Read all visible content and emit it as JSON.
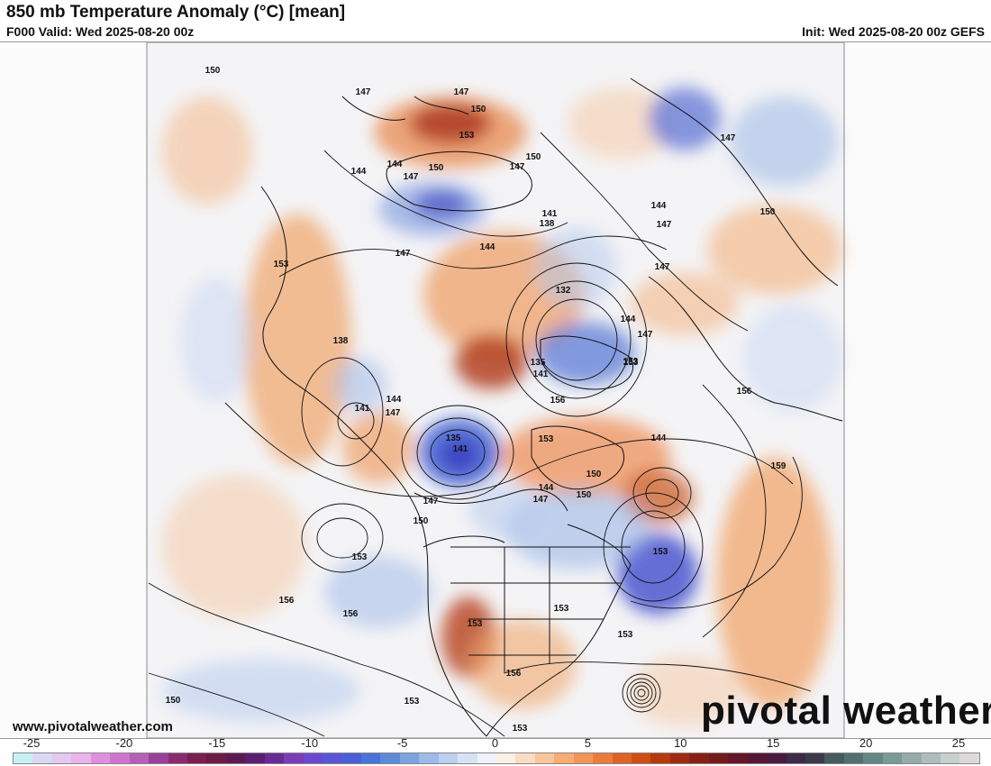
{
  "header": {
    "title": "850 mb Temperature Anomaly (°C) [mean]",
    "valid": "F000 Valid: Wed 2025-08-20 00z",
    "init": "Init: Wed 2025-08-20 00z GEFS"
  },
  "footer": {
    "website": "www.pivotalweather.com",
    "brand": "pivotal weather"
  },
  "colorbar": {
    "tick_labels": [
      "-25",
      "-20",
      "-15",
      "-10",
      "-5",
      "0",
      "5",
      "10",
      "15",
      "20",
      "25"
    ],
    "colors": [
      "#c6f0f5",
      "#d9d9f5",
      "#e3c8f0",
      "#eab3ea",
      "#e08fe0",
      "#cf73cf",
      "#b65fb6",
      "#9b3f9b",
      "#8a2b70",
      "#7a1f50",
      "#6c1b46",
      "#5d1a52",
      "#5a1f70",
      "#6a2b95",
      "#7a3cb8",
      "#6a49d0",
      "#5a55d8",
      "#4a5fd8",
      "#4a73d8",
      "#5a8ad8",
      "#7aa3e0",
      "#9dbbe8",
      "#bcd0ef",
      "#d7e2f5",
      "#eef2fb",
      "#fbf0e4",
      "#fbddc3",
      "#fbc69a",
      "#f8ad73",
      "#f29556",
      "#ea7b3a",
      "#df6324",
      "#cf4c12",
      "#b73a0f",
      "#9d2c12",
      "#872016",
      "#751a1d",
      "#651727",
      "#561735",
      "#4a1a3f",
      "#3f2a4a",
      "#3a3a4c",
      "#475a5e",
      "#537070",
      "#638883",
      "#7a9a96",
      "#94abaa",
      "#aebdbc",
      "#c7cfcf",
      "#dedada"
    ]
  },
  "map": {
    "contour_labels": [
      "150",
      "147",
      "147",
      "150",
      "153",
      "144",
      "144",
      "150",
      "147",
      "147",
      "150",
      "147",
      "147",
      "153",
      "141",
      "138",
      "144",
      "144",
      "147",
      "147",
      "150",
      "153",
      "132",
      "144",
      "147",
      "135",
      "141",
      "153",
      "156",
      "138",
      "144",
      "141",
      "147",
      "135",
      "141",
      "156",
      "153",
      "144",
      "159",
      "150",
      "147",
      "144",
      "147",
      "150",
      "153",
      "150",
      "153",
      "153",
      "156",
      "156",
      "153",
      "153",
      "156",
      "150",
      "153",
      "153"
    ]
  }
}
